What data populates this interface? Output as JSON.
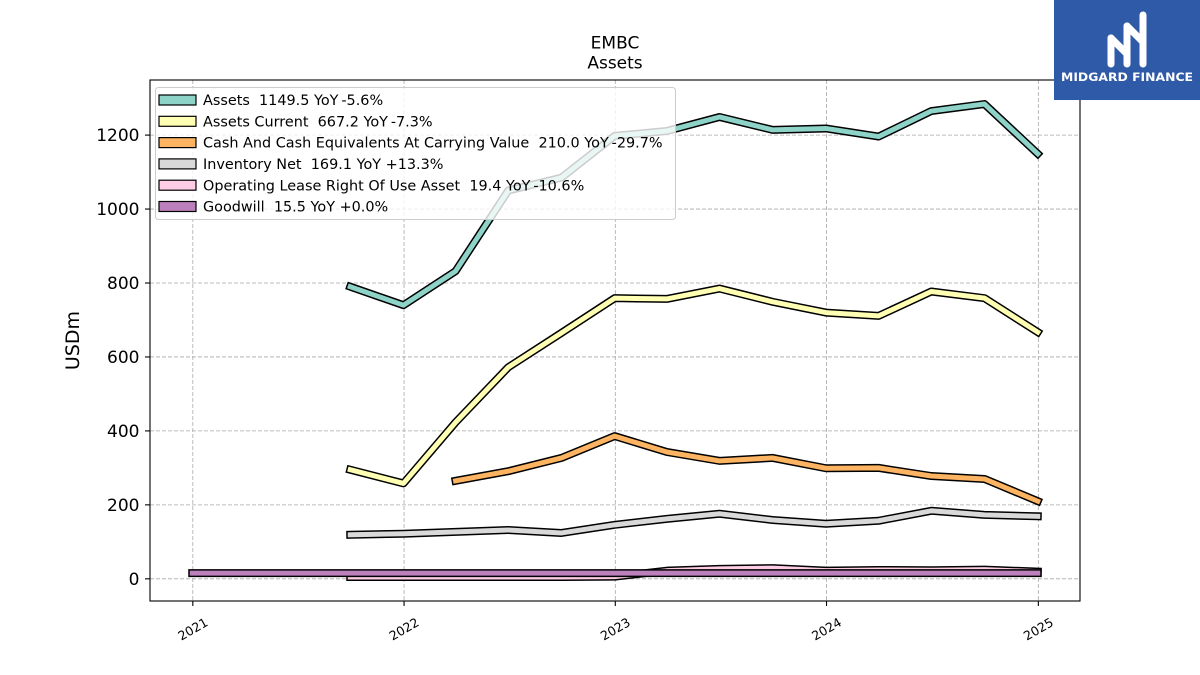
{
  "brand": {
    "name": "MIDGARD FINANCE",
    "color": "#2f5aa8",
    "icon": "midgard-logo-mark-icon"
  },
  "chart_data": {
    "type": "line",
    "title": "EMBC",
    "subtitle": "Assets",
    "ylabel": "USDm",
    "x": [
      "2020-12-31",
      "2021-03-31",
      "2021-06-30",
      "2021-09-30",
      "2021-12-31",
      "2022-03-31",
      "2022-06-30",
      "2022-09-30",
      "2022-12-31",
      "2023-03-31",
      "2023-06-30",
      "2023-09-30",
      "2023-12-31",
      "2024-03-31",
      "2024-06-30",
      "2024-09-30",
      "2024-12-31"
    ],
    "x_ticks": [
      "2021",
      "2022",
      "2023",
      "2024",
      "2025"
    ],
    "y_ticks": [
      0,
      200,
      400,
      600,
      800,
      1000,
      1200
    ],
    "xlim": [
      "2020-10-19",
      "2025-03-14"
    ],
    "ylim": [
      -60,
      1349
    ],
    "grid": true,
    "legend": {
      "position": "top-left",
      "yoy_label": "YoY"
    },
    "series": [
      {
        "name": "Assets",
        "latest": "1149.5",
        "yoy": "-5.6%",
        "color": "#8dd3c7",
        "values": [
          null,
          null,
          null,
          790,
          740,
          832,
          1050,
          1085,
          1198,
          1211,
          1249,
          1214,
          1218,
          1196,
          1265,
          1284,
          1149.5
        ]
      },
      {
        "name": "Assets Current",
        "latest": "667.2",
        "yoy": "-7.3%",
        "color": "#ffffb3",
        "values": [
          null,
          null,
          null,
          295,
          258,
          423,
          572,
          665,
          759,
          757,
          785,
          749,
          720,
          711,
          777,
          759,
          667.2
        ]
      },
      {
        "name": "Cash And Cash Equivalents At Carrying Value",
        "latest": "210.0",
        "yoy": "-29.7%",
        "color": "#fdb462",
        "values": [
          null,
          null,
          null,
          null,
          null,
          265,
          291,
          327,
          386,
          343,
          319,
          327,
          299,
          300,
          278,
          270,
          210.0
        ]
      },
      {
        "name": "Inventory Net",
        "latest": "169.1",
        "yoy": "+13.3%",
        "color": "#d9d9d9",
        "values": [
          null,
          null,
          null,
          119,
          122,
          127,
          132,
          124,
          146,
          162,
          176,
          159,
          149,
          157,
          184,
          173,
          169.1
        ]
      },
      {
        "name": "Operating Lease Right Of Use Asset",
        "latest": "19.4",
        "yoy": "-10.6%",
        "color": "#fccde5",
        "values": [
          null,
          null,
          null,
          5,
          5,
          5,
          5,
          5,
          6,
          22,
          27,
          29,
          22,
          24,
          23,
          25,
          19.4
        ]
      },
      {
        "name": "Goodwill",
        "latest": "15.5",
        "yoy": "+0.0%",
        "color": "#bc80bd",
        "values": [
          15.5,
          15.5,
          15.5,
          15.5,
          15.5,
          15.5,
          15.5,
          15.5,
          15.5,
          15.5,
          15.5,
          15.5,
          15.5,
          15.5,
          15.5,
          15.5,
          15.5
        ]
      }
    ]
  }
}
